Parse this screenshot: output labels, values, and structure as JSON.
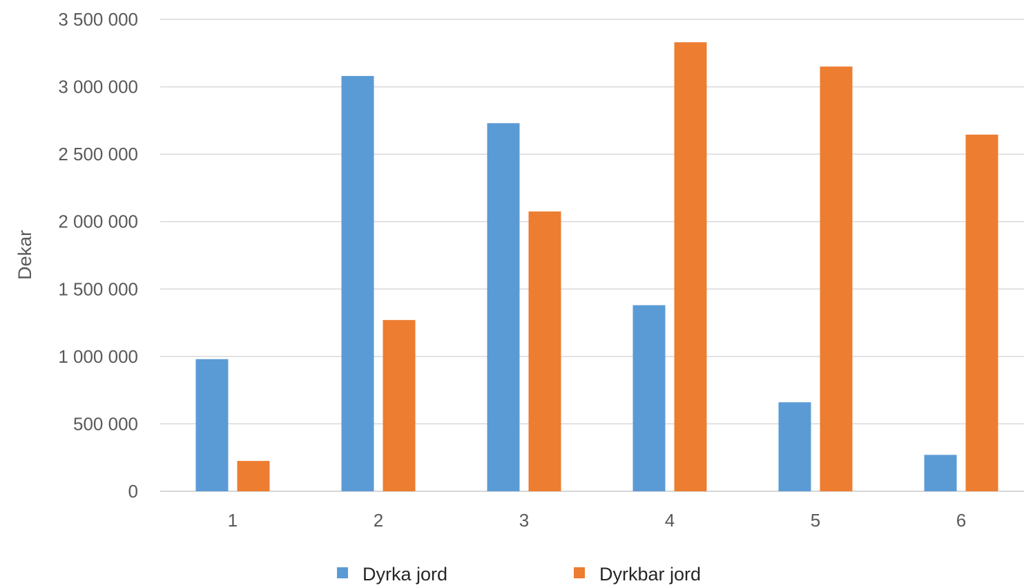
{
  "chart_data": {
    "type": "bar",
    "title": "",
    "xlabel": "",
    "ylabel": "Dekar",
    "categories": [
      "1",
      "2",
      "3",
      "4",
      "5",
      "6"
    ],
    "series": [
      {
        "name": "Dyrka jord",
        "color": "#5b9bd5",
        "values": [
          980000,
          3080000,
          2730000,
          1380000,
          660000,
          270000
        ]
      },
      {
        "name": "Dyrkbar jord",
        "color": "#ed7d31",
        "values": [
          225000,
          1270000,
          2075000,
          3330000,
          3150000,
          2645000
        ]
      }
    ],
    "ylim": [
      0,
      3500000
    ],
    "yticks": [
      0,
      500000,
      1000000,
      1500000,
      2000000,
      2500000,
      3000000,
      3500000
    ],
    "ytick_labels": [
      "0",
      "500 000",
      "1 000 000",
      "1 500 000",
      "2 000 000",
      "2 500 000",
      "3 000 000",
      "3 500 000"
    ],
    "grid": true,
    "legend_position": "bottom"
  }
}
